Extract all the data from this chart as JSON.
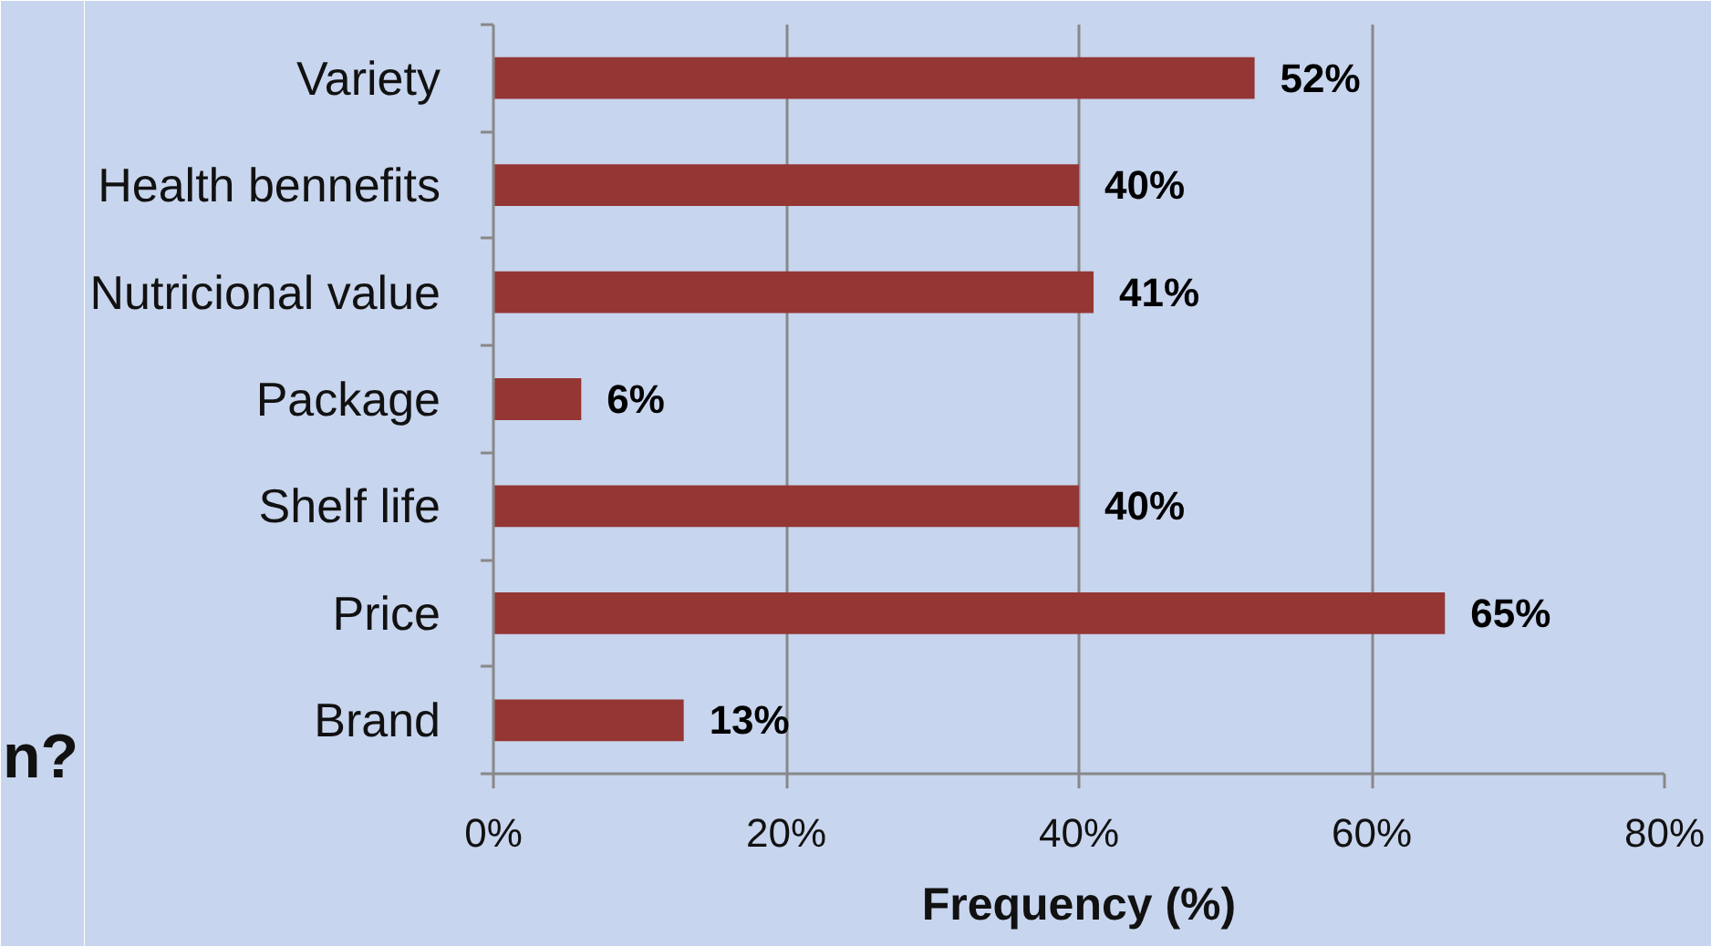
{
  "chart_data": {
    "type": "bar",
    "orientation": "horizontal",
    "categories": [
      "Variety",
      "Health bennefits",
      "Nutricional value",
      "Package",
      "Shelf life",
      "Price",
      "Brand"
    ],
    "values": [
      52,
      40,
      41,
      6,
      40,
      65,
      13
    ],
    "value_labels": [
      "52%",
      "40%",
      "41%",
      "6%",
      "40%",
      "65%",
      "13%"
    ],
    "color": "#943634",
    "xlabel": "Frequency (%)",
    "xlim": [
      0,
      80
    ],
    "xticks": [
      {
        "value": 0,
        "label": "0%"
      },
      {
        "value": 20,
        "label": "20%"
      },
      {
        "value": 40,
        "label": "40%"
      },
      {
        "value": 60,
        "label": "60%"
      },
      {
        "value": 80,
        "label": "80%"
      }
    ],
    "grid": "x",
    "annotations": [
      "n?"
    ]
  }
}
